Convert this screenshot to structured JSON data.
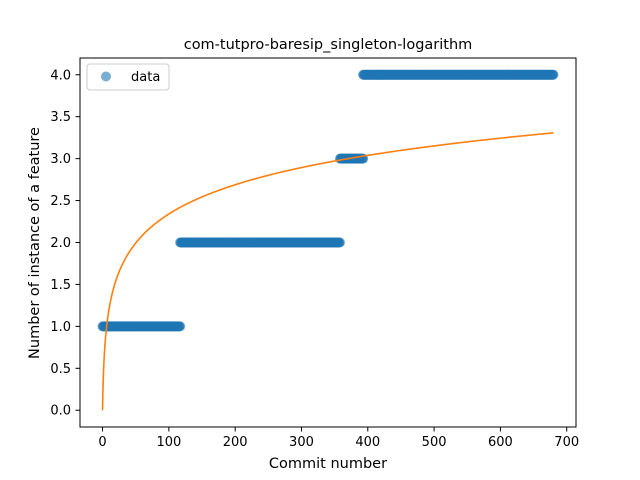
{
  "chart_data": {
    "type": "scatter",
    "title": "com-tutpro-baresip_singleton-logarithm",
    "xlabel": "Commit number",
    "ylabel": "Number of instance of a feature",
    "xlim": [
      -34,
      714
    ],
    "ylim": [
      -0.2,
      4.2
    ],
    "xticks": [
      0,
      100,
      200,
      300,
      400,
      500,
      600,
      700
    ],
    "yticks": [
      0.0,
      0.5,
      1.0,
      1.5,
      2.0,
      2.5,
      3.0,
      3.5,
      4.0
    ],
    "xtick_labels": [
      "0",
      "100",
      "200",
      "300",
      "400",
      "500",
      "600",
      "700"
    ],
    "ytick_labels": [
      "0.0",
      "0.5",
      "1.0",
      "1.5",
      "2.0",
      "2.5",
      "3.0",
      "3.5",
      "4.0"
    ],
    "grid": false,
    "legend": {
      "placement": "upper-left",
      "entries": [
        "data"
      ]
    },
    "series": [
      {
        "name": "data",
        "kind": "scatter",
        "color": "#1f77b4",
        "segments": [
          {
            "x_start": 0,
            "x_end": 117,
            "y": 1
          },
          {
            "x_start": 117,
            "x_end": 358,
            "y": 2
          },
          {
            "x_start": 358,
            "x_end": 393,
            "y": 3
          },
          {
            "x_start": 393,
            "x_end": 680,
            "y": 4
          }
        ]
      },
      {
        "kind": "line",
        "color": "#ff7f0e",
        "fit": {
          "a": 0.507,
          "b": 0.0,
          "x_min": 0,
          "x_max": 680
        }
      }
    ]
  }
}
